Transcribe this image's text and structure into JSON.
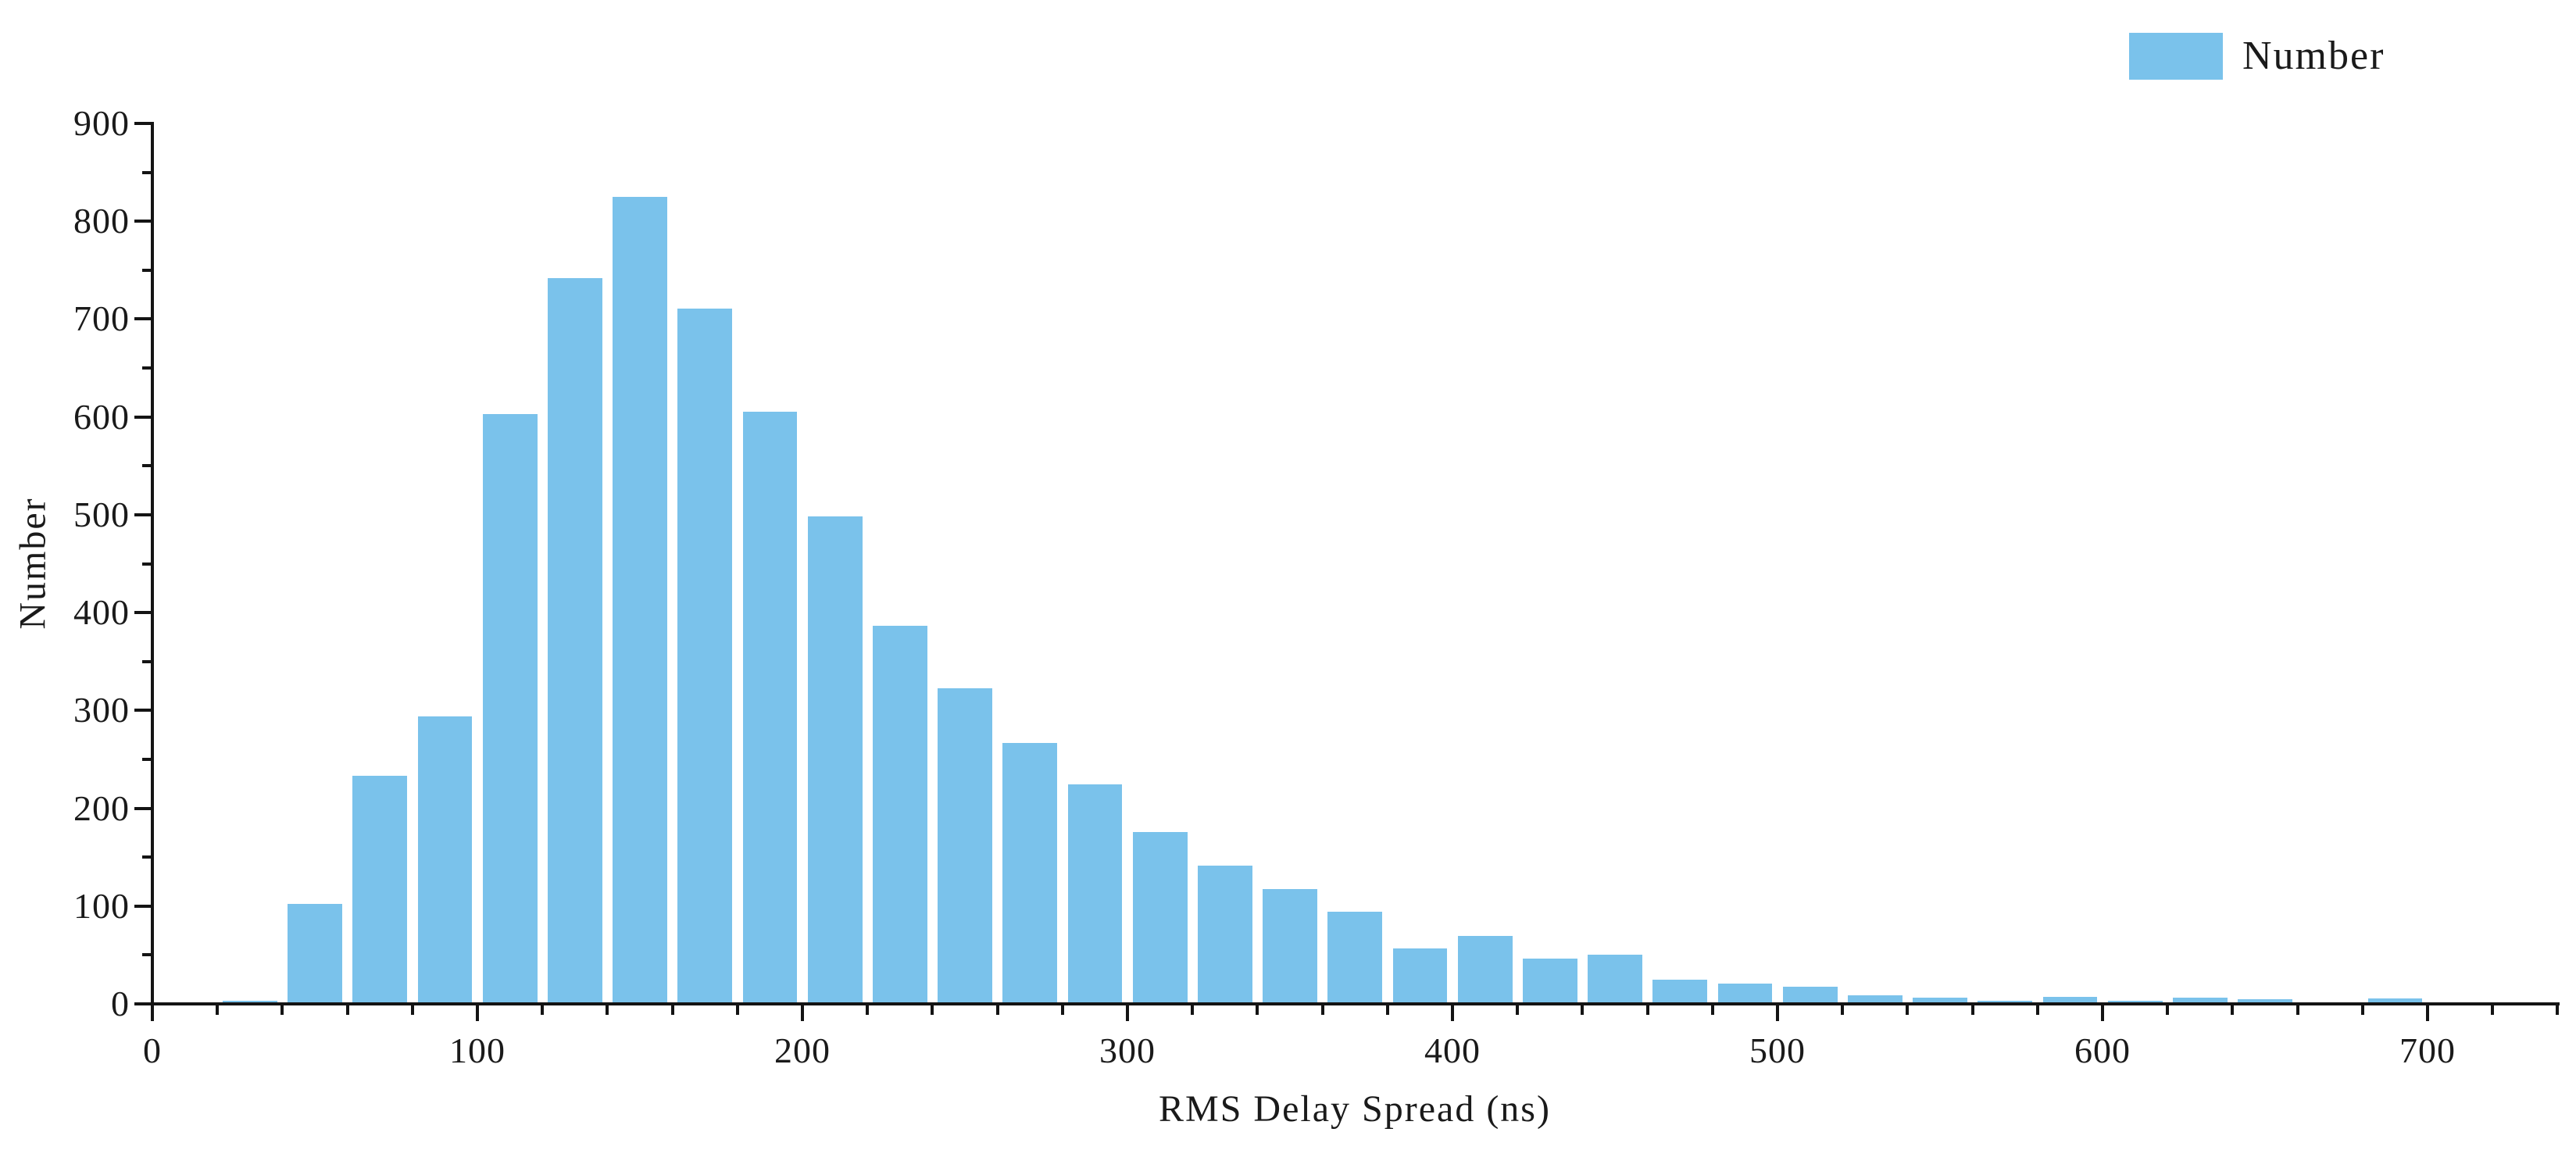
{
  "chart_data": {
    "type": "bar",
    "subtype": "histogram",
    "title": "",
    "xlabel": "RMS Delay Spread (ns)",
    "ylabel": "Number",
    "legend": [
      {
        "label": "Number",
        "color": "#7AC2EB"
      }
    ],
    "legend_position": "top-right",
    "grid": false,
    "bar_color": "#7AC2EB",
    "axis_color": "#141414",
    "xlim": [
      0,
      740
    ],
    "ylim": [
      0,
      900
    ],
    "x_major_ticks": [
      0,
      100,
      200,
      300,
      400,
      500,
      600,
      700
    ],
    "x_minor_step": 20,
    "y_major_ticks": [
      0,
      100,
      200,
      300,
      400,
      500,
      600,
      700,
      800,
      900
    ],
    "y_minor_step": 50,
    "bin_width": 20,
    "bins_start": [
      20,
      40,
      60,
      80,
      100,
      120,
      140,
      160,
      180,
      200,
      220,
      240,
      260,
      280,
      300,
      320,
      340,
      360,
      380,
      400,
      420,
      440,
      460,
      480,
      500,
      520,
      540,
      560,
      580,
      600,
      620,
      640,
      660,
      680,
      700,
      720
    ],
    "series": [
      {
        "name": "Number",
        "values": [
          2,
          101,
          232,
          292,
          601,
          740,
          823,
          709,
          604,
          497,
          385,
          321,
          265,
          223,
          174,
          140,
          116,
          93,
          55,
          68,
          45,
          49,
          23,
          19,
          16,
          7,
          5,
          2,
          6,
          2,
          5,
          3,
          0,
          4,
          0,
          0
        ]
      }
    ]
  }
}
